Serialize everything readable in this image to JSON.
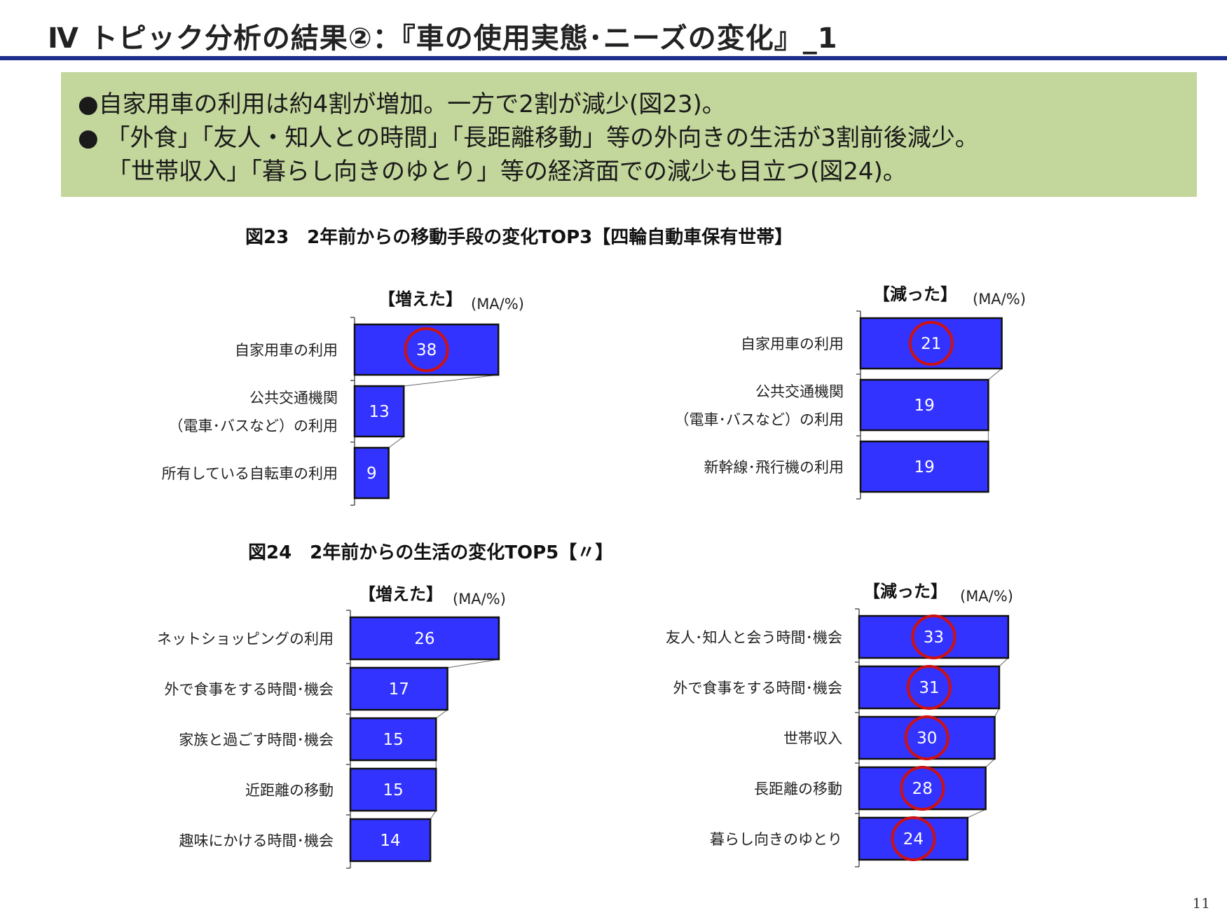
{
  "slide": {
    "title": "Ⅳ トピック分析の結果②：『車の使用実態･ニーズの変化』_1",
    "page_number": "11"
  },
  "summary": {
    "bullet_1": "●自家用車の利用は約4割が増加。一方で2割が減少(図23)。",
    "bullet_2": "● 「外食」「友人・知人との時間」「長距離移動」等の外向きの生活が3割前後減少。",
    "bullet_3": "「世帯収入」「暮らし向きのゆとり」等の経済面での減少も目立つ(図24)。"
  },
  "colors": {
    "bar": "#3333ff",
    "bar_border": "#111111",
    "highlight_circle": "#cc1111",
    "summary_bg": "#c3d69b",
    "title_rule": "#1c2d8c"
  },
  "fig23": {
    "title": "図23　2年前からの移動手段の変化TOP3【四輪自動車保有世帯】"
  },
  "fig24": {
    "title": "図24　2年前からの生活の変化TOP5【〃】"
  },
  "chart_data": [
    {
      "id": "fig23-increased",
      "type": "bar",
      "orientation": "horizontal",
      "figure": "図23",
      "title": "【増えた】",
      "unit": "(MA/%)",
      "categories": [
        [
          "自家用車の利用"
        ],
        [
          "公共交通機関",
          "（電車･バスなど）の利用"
        ],
        [
          "所有している自転車の利用"
        ]
      ],
      "values": [
        38,
        13,
        9
      ],
      "highlighted": [
        true,
        false,
        false
      ]
    },
    {
      "id": "fig23-decreased",
      "type": "bar",
      "orientation": "horizontal",
      "figure": "図23",
      "title": "【減った】",
      "unit": "(MA/%)",
      "categories": [
        [
          "自家用車の利用"
        ],
        [
          "公共交通機関",
          "（電車･バスなど）の利用"
        ],
        [
          "新幹線･飛行機の利用"
        ]
      ],
      "values": [
        21,
        19,
        19
      ],
      "highlighted": [
        true,
        false,
        false
      ]
    },
    {
      "id": "fig24-increased",
      "type": "bar",
      "orientation": "horizontal",
      "figure": "図24",
      "title": "【増えた】",
      "unit": "(MA/%)",
      "categories": [
        [
          "ネットショッピングの利用"
        ],
        [
          "外で食事をする時間･機会"
        ],
        [
          "家族と過ごす時間･機会"
        ],
        [
          "近距離の移動"
        ],
        [
          "趣味にかける時間･機会"
        ]
      ],
      "values": [
        26,
        17,
        15,
        15,
        14
      ],
      "highlighted": [
        false,
        false,
        false,
        false,
        false
      ]
    },
    {
      "id": "fig24-decreased",
      "type": "bar",
      "orientation": "horizontal",
      "figure": "図24",
      "title": "【減った】",
      "unit": "(MA/%)",
      "categories": [
        [
          "友人･知人と会う時間･機会"
        ],
        [
          "外で食事をする時間･機会"
        ],
        [
          "世帯収入"
        ],
        [
          "長距離の移動"
        ],
        [
          "暮らし向きのゆとり"
        ]
      ],
      "values": [
        33,
        31,
        30,
        28,
        24
      ],
      "highlighted": [
        true,
        true,
        true,
        true,
        true
      ]
    }
  ]
}
